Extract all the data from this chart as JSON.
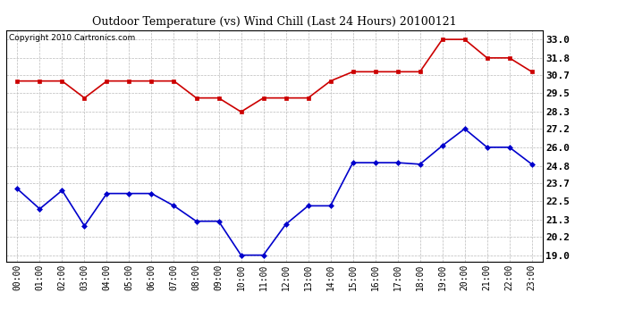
{
  "title": "Outdoor Temperature (vs) Wind Chill (Last 24 Hours) 20100121",
  "copyright": "Copyright 2010 Cartronics.com",
  "hours": [
    "00:00",
    "01:00",
    "02:00",
    "03:00",
    "04:00",
    "05:00",
    "06:00",
    "07:00",
    "08:00",
    "09:00",
    "10:00",
    "11:00",
    "12:00",
    "13:00",
    "14:00",
    "15:00",
    "16:00",
    "17:00",
    "18:00",
    "19:00",
    "20:00",
    "21:00",
    "22:00",
    "23:00"
  ],
  "temp": [
    30.3,
    30.3,
    30.3,
    29.2,
    30.3,
    30.3,
    30.3,
    30.3,
    29.2,
    29.2,
    28.3,
    29.2,
    29.2,
    29.2,
    30.3,
    30.9,
    30.9,
    30.9,
    30.9,
    33.0,
    33.0,
    31.8,
    31.8,
    30.9
  ],
  "windchill": [
    23.3,
    22.0,
    23.2,
    20.9,
    23.0,
    23.0,
    23.0,
    22.2,
    21.2,
    21.2,
    19.0,
    19.0,
    21.0,
    22.2,
    22.2,
    25.0,
    25.0,
    25.0,
    24.9,
    26.1,
    27.2,
    26.0,
    26.0,
    24.9
  ],
  "temp_color": "#cc0000",
  "windchill_color": "#0000cc",
  "bg_color": "#ffffff",
  "grid_color": "#bbbbbb",
  "ytick_values": [
    19.0,
    20.2,
    21.3,
    22.5,
    23.7,
    24.8,
    26.0,
    27.2,
    28.3,
    29.5,
    30.7,
    31.8,
    33.0
  ],
  "ytick_labels": [
    "19.0",
    "20.2",
    "21.3",
    "22.5",
    "23.7",
    "24.8",
    "26.0",
    "27.2",
    "28.3",
    "29.5",
    "30.7",
    "31.8",
    "33.0"
  ],
  "ymin": 18.6,
  "ymax": 33.6,
  "temp_marker": "s",
  "wind_marker": "D",
  "linewidth": 1.2,
  "markersize": 3.0,
  "title_fontsize": 9,
  "tick_fontsize": 8,
  "xlabel_fontsize": 7,
  "copyright_fontsize": 6.5
}
